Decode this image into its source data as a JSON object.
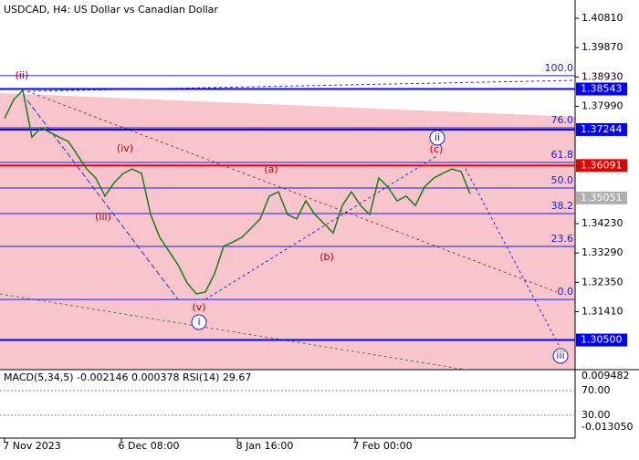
{
  "title": "USDCAD, H4:  US Dollar vs Canadian Dollar",
  "chart_data": {
    "type": "line",
    "x_labels": [
      "7 Nov 2023",
      "6 Dec 08:00",
      "8 Jan 16:00",
      "7 Feb 00:00"
    ],
    "series": [
      {
        "color": "#1a7a1a",
        "values": [
          1.376,
          1.382,
          1.385,
          1.37,
          1.373,
          1.3715,
          1.37,
          1.3686,
          1.3642,
          1.3598,
          1.3569,
          1.3511,
          1.3554,
          1.3584,
          1.3598,
          1.3584,
          1.3452,
          1.3379,
          1.3335,
          1.3291,
          1.3233,
          1.3198,
          1.3204,
          1.3262,
          1.335,
          1.3364,
          1.3379,
          1.3408,
          1.3438,
          1.3511,
          1.3525,
          1.3452,
          1.3438,
          1.3496,
          1.3452,
          1.3423,
          1.3393,
          1.3481,
          1.3525,
          1.3481,
          1.3452,
          1.3569,
          1.354,
          1.3496,
          1.3511,
          1.3481,
          1.354,
          1.3569,
          1.3584,
          1.3598,
          1.359,
          1.3519
        ]
      }
    ],
    "ylim": [
      1.29551,
      1.41395
    ],
    "yticks": [
      {
        "value": 1.4081,
        "label": "1.40810"
      },
      {
        "value": 1.3987,
        "label": "1.39870"
      },
      {
        "value": 1.3893,
        "label": "1.38930"
      },
      {
        "value": 1.3799,
        "label": "1.37990"
      },
      {
        "value": 1.3423,
        "label": "1.34230"
      },
      {
        "value": 1.3329,
        "label": "1.33290"
      },
      {
        "value": 1.3235,
        "label": "1.32350"
      },
      {
        "value": 1.3141,
        "label": "1.31410"
      }
    ],
    "levels": [
      {
        "value": 1.38543,
        "label": "1.38543",
        "color": "#0000ff"
      },
      {
        "value": 1.37244,
        "label": "1.37244",
        "color": "#0000ff"
      },
      {
        "value": 1.36091,
        "label": "1.36091",
        "color": "#e00000"
      },
      {
        "value": 1.35051,
        "label": "1.35051",
        "color": "#b0b0b0"
      },
      {
        "value": 1.305,
        "label": "1.30500",
        "color": "#0000ff"
      }
    ],
    "fib_levels": [
      {
        "level": "100.0",
        "price": 1.3897
      },
      {
        "level": "76.0",
        "price": 1.373
      },
      {
        "level": "61.8",
        "price": 1.3619
      },
      {
        "level": "50.0",
        "price": 1.3537
      },
      {
        "level": "38.2",
        "price": 1.3455
      },
      {
        "level": "23.6",
        "price": 1.335
      },
      {
        "level": "0.0",
        "price": 1.318
      }
    ],
    "wave_labels": [
      "(ii)",
      "(iii)",
      "(iv)",
      "(v)",
      "i",
      "(a)",
      "(b)",
      "(c)",
      "ii",
      "iii"
    ],
    "indicator": {
      "title": "MACD(5,34,5) -0.002146 0.000378 RSI(14) 29.67",
      "ticks": [
        "0.009482",
        "70.00",
        "30.00",
        "-0.013050"
      ]
    }
  }
}
